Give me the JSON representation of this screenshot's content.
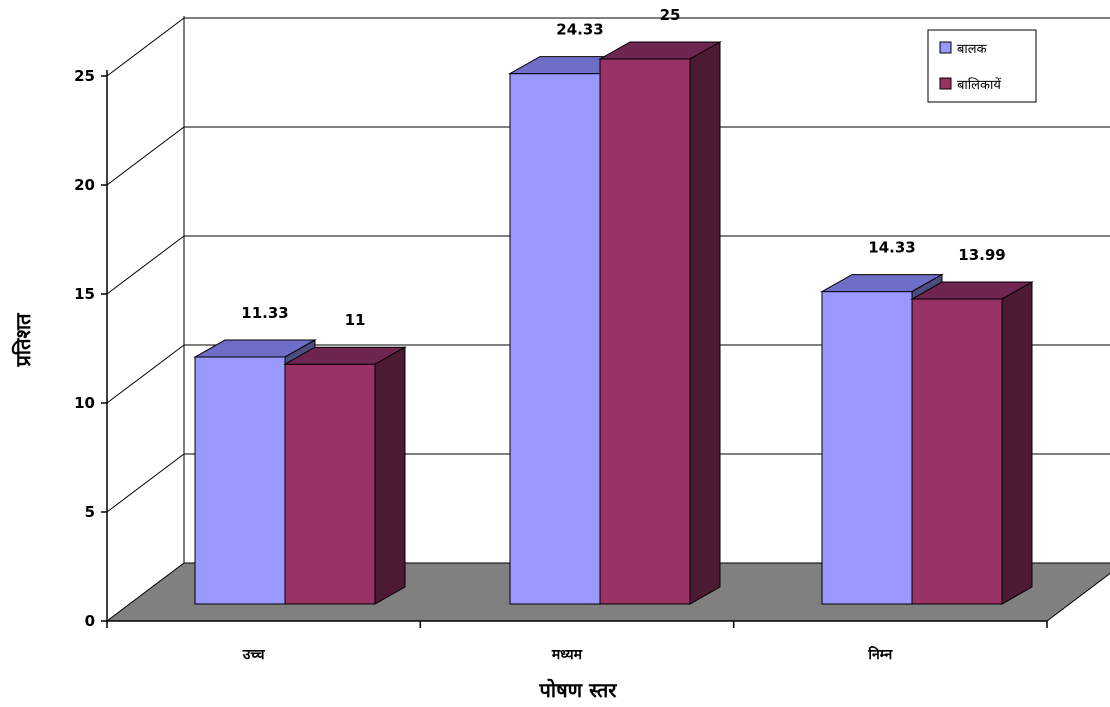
{
  "chart_data": {
    "type": "bar",
    "categories": [
      "उच्च",
      "मध्यम",
      "निम्न"
    ],
    "series": [
      {
        "name": "बालक",
        "values": [
          11.33,
          24.33,
          14.33
        ],
        "labels": [
          "11.33",
          "24.33",
          "14.33"
        ],
        "color": "#9999ff"
      },
      {
        "name": "बालिकायें",
        "values": [
          11,
          25,
          13.99
        ],
        "labels": [
          "11",
          "25",
          "13.99"
        ],
        "color": "#993366"
      }
    ],
    "xlabel": "पोषण स्तर",
    "ylabel": "प्रतिशत",
    "ylim": [
      0,
      25
    ],
    "yticks": [
      "0",
      "5",
      "10",
      "15",
      "20",
      "25"
    ],
    "grid": true,
    "legend_position": "top-right",
    "three_d": true,
    "floor_color": "#808080",
    "wall_color": "#ffffff"
  }
}
